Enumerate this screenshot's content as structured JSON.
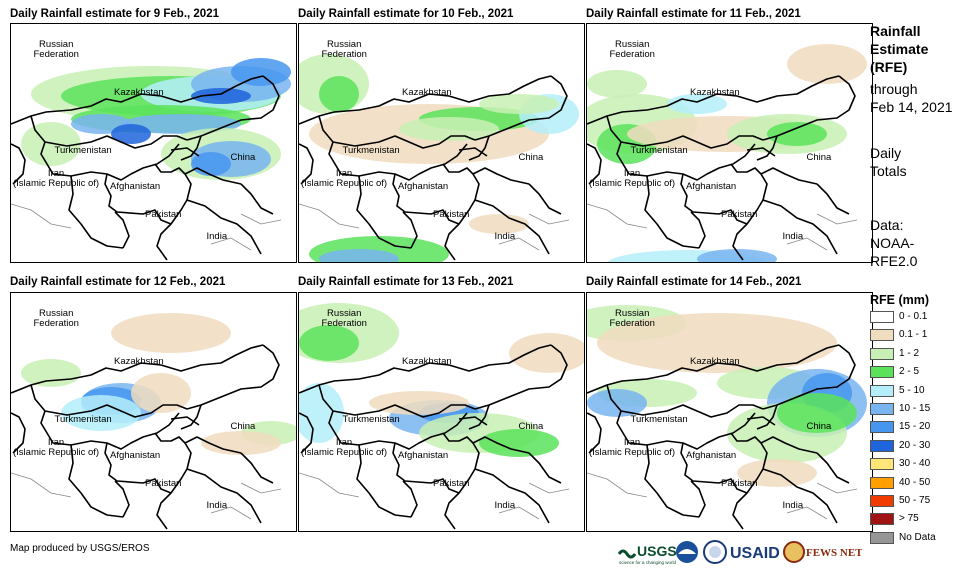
{
  "panels": [
    {
      "title": "Daily Rainfall estimate for 9 Feb., 2021"
    },
    {
      "title": "Daily Rainfall estimate for 10 Feb., 2021"
    },
    {
      "title": "Daily Rainfall estimate for 11 Feb., 2021"
    },
    {
      "title": "Daily Rainfall estimate for 12 Feb., 2021"
    },
    {
      "title": "Daily Rainfall estimate for 13 Feb., 2021"
    },
    {
      "title": "Daily Rainfall estimate for 14 Feb., 2021"
    }
  ],
  "map_labels": {
    "russia": "Russian\nFederation",
    "kazakhstan": "Kazakhstan",
    "turkmenistan": "Turkmenistan",
    "iran": "Iran\n(Islamic Republic of)",
    "afghanistan": "Afghanistan",
    "pakistan": "Pakistan",
    "india": "India",
    "china": "China"
  },
  "sidebar": {
    "title_line1": "Rainfall",
    "title_line2": "Estimate",
    "title_line3": "(RFE)",
    "through": "through",
    "date": "Feb 14, 2021",
    "daily1": "Daily",
    "daily2": "Totals",
    "data1": "Data:",
    "data2": "NOAA-",
    "data3": "RFE2.0"
  },
  "legend": {
    "title": "RFE (mm)",
    "items": [
      {
        "label": "0 - 0.1",
        "color": "#ffffff"
      },
      {
        "label": "0.1 - 1",
        "color": "#f0dcbe"
      },
      {
        "label": "1 - 2",
        "color": "#c8f0b4"
      },
      {
        "label": "2 - 5",
        "color": "#5ae35a"
      },
      {
        "label": "5 - 10",
        "color": "#b4eefa"
      },
      {
        "label": "10 - 15",
        "color": "#78b4f0"
      },
      {
        "label": "15 - 20",
        "color": "#4696f0"
      },
      {
        "label": "20 - 30",
        "color": "#1e64dc"
      },
      {
        "label": "30 - 40",
        "color": "#ffe678"
      },
      {
        "label": "40 - 50",
        "color": "#ffa000"
      },
      {
        "label": "50 - 75",
        "color": "#f03c00"
      },
      {
        "label": "> 75",
        "color": "#a01414"
      },
      {
        "label": "No Data",
        "color": "#969696"
      }
    ]
  },
  "credit": "Map produced by USGS/EROS",
  "logos": {
    "usgs": "USGS",
    "usgs_tagline": "science for a changing world",
    "usaid": "USAID",
    "fewsnet": "FEWS NET"
  }
}
